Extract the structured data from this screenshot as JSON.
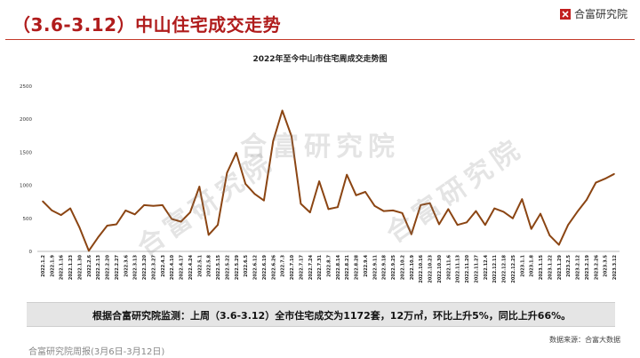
{
  "header": {
    "title": "（3.6-3.12）中山住宅成交走势",
    "brand": "合富研究院"
  },
  "watermark": "合富研究院",
  "summary": "根据合富研究院监测：上周（3.6-3.12）全市住宅成交为1172套，12万㎡，环比上升5%，同比上升66%。",
  "source": "数据来源：合富大数据",
  "footer": "合富研究院周报(3月6日-3月12日)",
  "colors": {
    "line": "#8b4513",
    "accent": "#b01c1c"
  },
  "chart_data": {
    "type": "line",
    "title": "2022年至今中山市住宅周成交走势图",
    "ylim": [
      0,
      2500
    ],
    "yticks": [
      0,
      500,
      1000,
      1500,
      2000,
      2500
    ],
    "categories": [
      "2022.1.2",
      "2022.1.9",
      "2022.1.16",
      "2022.1.23",
      "2022.1.30",
      "2022.2.6",
      "2022.2.13",
      "2022.2.20",
      "2022.2.27",
      "2022.3.6",
      "2022.3.13",
      "2022.3.20",
      "2022.3.27",
      "2022.4.3",
      "2022.4.10",
      "2022.4.17",
      "2022.4.24",
      "2022.5.1",
      "2022.5.8",
      "2022.5.15",
      "2022.5.22",
      "2022.5.29",
      "2022.6.5",
      "2022.6.12",
      "2022.6.19",
      "2022.6.26",
      "2022.7.3",
      "2022.7.10",
      "2022.7.17",
      "2022.7.24",
      "2022.7.31",
      "2022.8.7",
      "2022.8.14",
      "2022.8.21",
      "2022.8.28",
      "2022.9.4",
      "2022.9.11",
      "2022.9.18",
      "2022.9.25",
      "2022.10.2",
      "2022.10.9",
      "2022.10.16",
      "2022.10.23",
      "2022.10.30",
      "2022.11.6",
      "2022.11.13",
      "2022.11.20",
      "2022.11.27",
      "2022.12.4",
      "2022.12.11",
      "2022.12.18",
      "2022.12.25",
      "2023.1.1",
      "2023.1.8",
      "2023.1.15",
      "2023.1.22",
      "2023.1.29",
      "2023.2.5",
      "2023.2.12",
      "2023.2.19",
      "2023.2.26",
      "2023.3.5",
      "2023.3.12"
    ],
    "series": [
      {
        "values": [
          760,
          620,
          550,
          650,
          360,
          10,
          210,
          390,
          410,
          620,
          560,
          700,
          690,
          700,
          490,
          450,
          590,
          980,
          250,
          400,
          1190,
          1490,
          1020,
          870,
          770,
          1670,
          2130,
          1740,
          720,
          590,
          1060,
          640,
          670,
          1160,
          850,
          900,
          690,
          610,
          620,
          580,
          260,
          700,
          730,
          410,
          640,
          400,
          440,
          610,
          400,
          650,
          600,
          500,
          790,
          340,
          570,
          240,
          100,
          400,
          600,
          780,
          1040,
          1100,
          1172
        ]
      }
    ]
  }
}
